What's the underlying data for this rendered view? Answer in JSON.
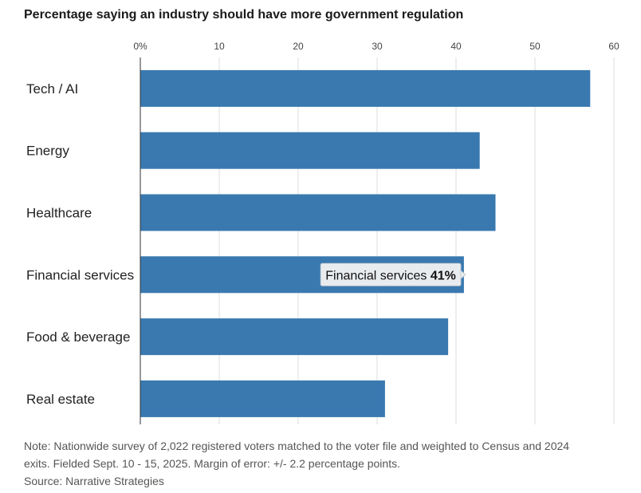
{
  "chart_data": {
    "type": "bar",
    "orientation": "horizontal",
    "title": "Percentage saying an industry should have more government regulation",
    "categories": [
      "Tech / AI",
      "Energy",
      "Healthcare",
      "Financial services",
      "Food & beverage",
      "Real estate"
    ],
    "values": [
      57,
      43,
      45,
      41,
      39,
      31
    ],
    "xlim": [
      0,
      60
    ],
    "xticks": [
      "0%",
      "10",
      "20",
      "30",
      "40",
      "50",
      "60"
    ],
    "xaxis_position": "top",
    "grid": true,
    "bar_color": "#3a79b0",
    "tooltip": {
      "label": "Financial services",
      "value": "41%"
    }
  },
  "note": {
    "line1": "Note: Nationwide survey of 2,022 registered voters matched to the voter file and weighted to Census and 2024",
    "line2": "exits. Fielded Sept. 10 - 15, 2025. Margin of error: +/- 2.2 percentage points.",
    "source": "Source: Narrative Strategies"
  }
}
